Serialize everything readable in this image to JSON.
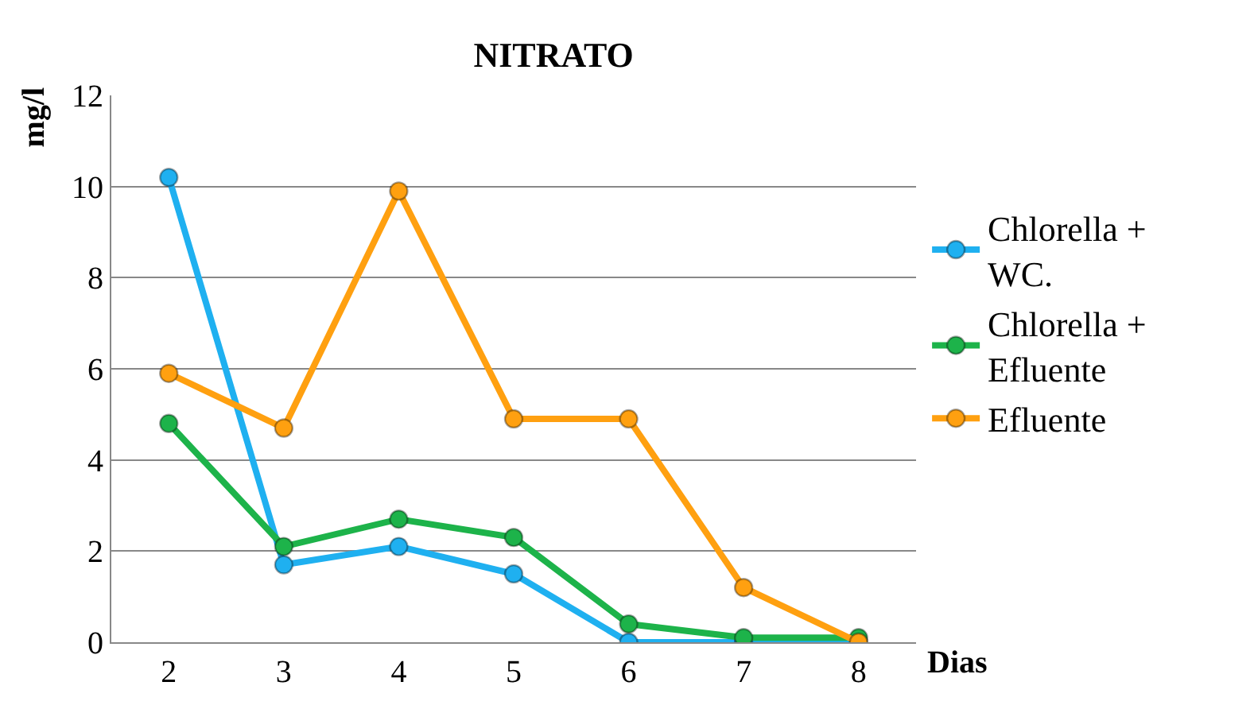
{
  "chart_data": {
    "type": "line",
    "title": "NITRATO",
    "xlabel": "Dias",
    "ylabel": "mg/l",
    "categories": [
      "2",
      "3",
      "4",
      "5",
      "6",
      "7",
      "8"
    ],
    "series": [
      {
        "name": "Chlorella + WC.",
        "color": "#1fb0f0",
        "values": [
          10.2,
          1.7,
          2.1,
          1.5,
          0.0,
          0.0,
          0.0
        ]
      },
      {
        "name": "Chlorella + Efluente",
        "color": "#1db34a",
        "values": [
          4.8,
          2.1,
          2.7,
          2.3,
          0.4,
          0.1,
          0.1
        ]
      },
      {
        "name": "Efluente",
        "color": "#ffa010",
        "values": [
          5.9,
          4.7,
          9.9,
          4.9,
          4.9,
          1.2,
          0.0
        ]
      }
    ],
    "ylim": [
      0,
      12
    ],
    "yticks": [
      0,
      2,
      4,
      6,
      8,
      10,
      12
    ],
    "grid": "y",
    "legend": "right",
    "marker": "circle",
    "line_style": "solid"
  }
}
